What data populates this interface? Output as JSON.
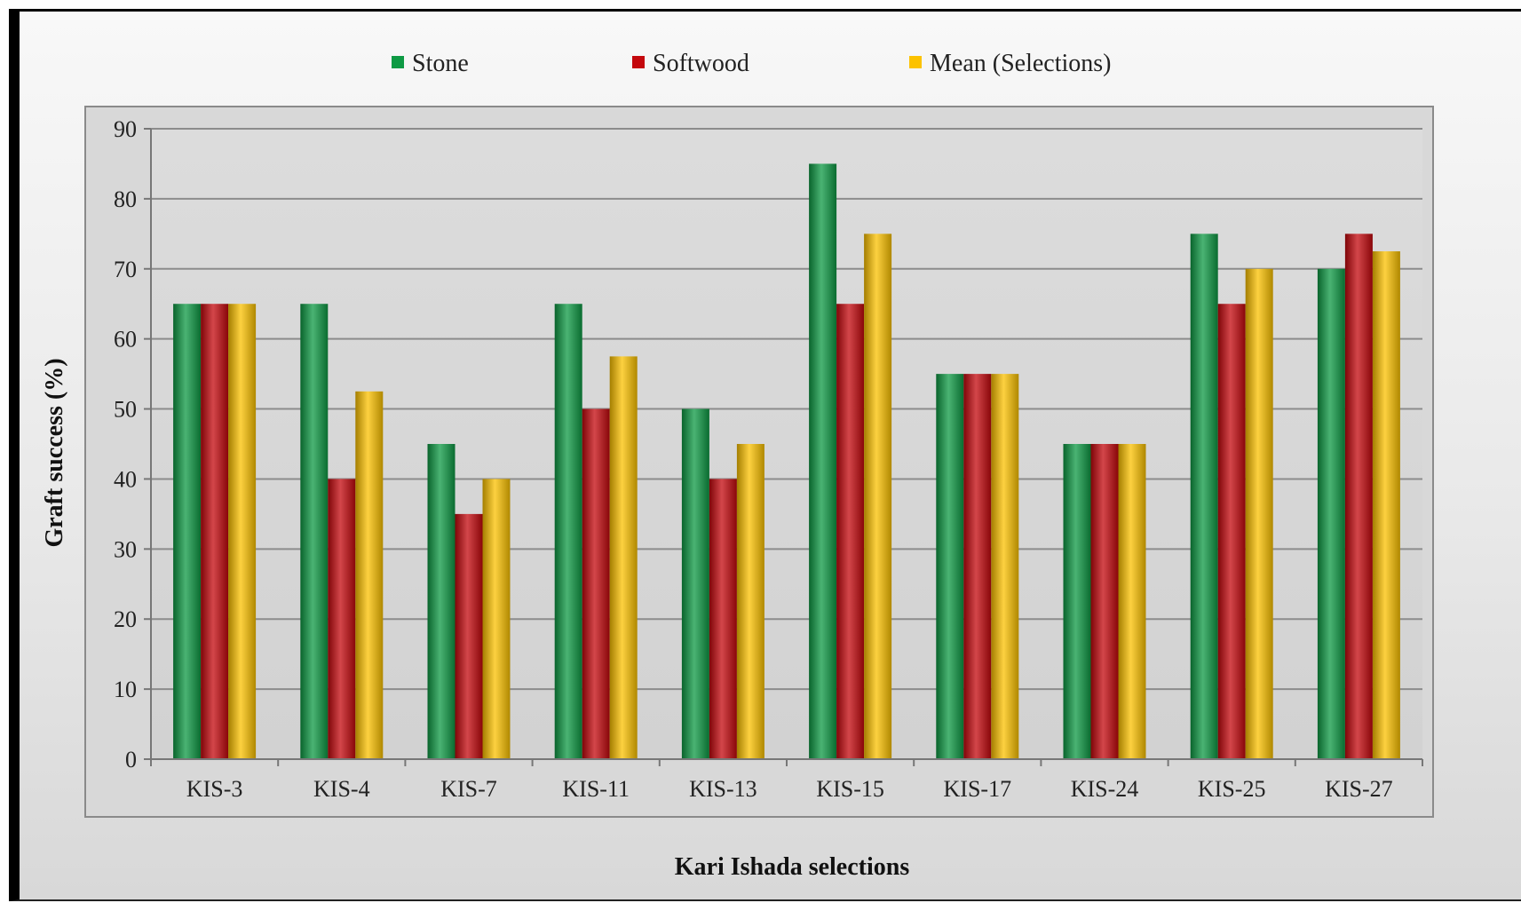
{
  "chart_data": {
    "type": "bar",
    "title": "",
    "xlabel": "Kari Ishada selections",
    "ylabel": "Graft success (%)",
    "ylim": [
      0,
      90
    ],
    "yticks": [
      "0",
      "10",
      "20",
      "30",
      "40",
      "50",
      "60",
      "70",
      "80",
      "90"
    ],
    "grid": true,
    "legend_position": "top",
    "categories": [
      "KIS-3",
      "KIS-4",
      "KIS-7",
      "KIS-11",
      "KIS-13",
      "KIS-15",
      "KIS-17",
      "KIS-24",
      "KIS-25",
      "KIS-27"
    ],
    "series": [
      {
        "name": "Stone",
        "color": "#0e9a44",
        "values": [
          65,
          65,
          45,
          65,
          50,
          85,
          55,
          45,
          75,
          70
        ]
      },
      {
        "name": "Softwood",
        "color": "#c4080d",
        "values": [
          65,
          40,
          35,
          50,
          40,
          65,
          55,
          45,
          65,
          75
        ]
      },
      {
        "name": "Mean (Selections)",
        "color": "#fcc200",
        "values": [
          65,
          52.5,
          40,
          57.5,
          45,
          75,
          55,
          45,
          70,
          72.5
        ]
      }
    ]
  }
}
